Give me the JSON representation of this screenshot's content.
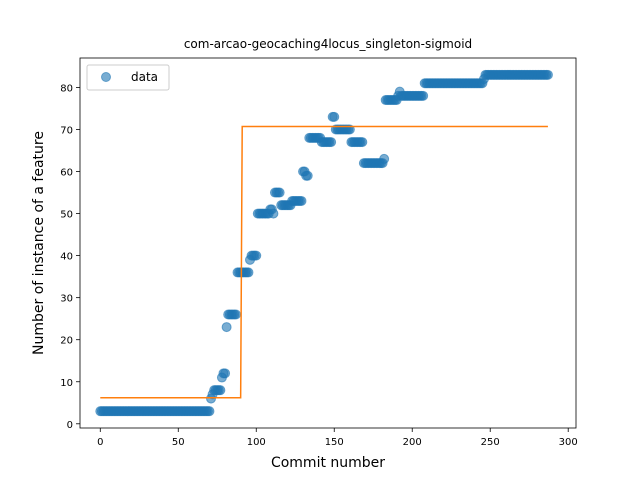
{
  "chart_data": {
    "type": "scatter",
    "title": "com-arcao-geocaching4locus_singleton-sigmoid",
    "xlabel": "Commit number",
    "ylabel": "Number of instance of a feature",
    "xlim": [
      -13,
      305
    ],
    "ylim": [
      -1,
      87
    ],
    "xticks": [
      0,
      50,
      100,
      150,
      200,
      250,
      300
    ],
    "yticks": [
      0,
      10,
      20,
      30,
      40,
      50,
      60,
      70,
      80
    ],
    "legend": {
      "position": "top-left",
      "entries": [
        "data"
      ]
    },
    "colors": {
      "data": "#1f77b4",
      "fit": "#ff7f0e"
    },
    "series": [
      {
        "name": "data",
        "kind": "scatter",
        "segments": [
          {
            "x_from": 0,
            "x_to": 70,
            "y": 3
          },
          {
            "x_from": 71,
            "x_to": 71,
            "y": 6
          },
          {
            "x_from": 72,
            "x_to": 72,
            "y": 7
          },
          {
            "x_from": 73,
            "x_to": 77,
            "y": 8
          },
          {
            "x_from": 78,
            "x_to": 78,
            "y": 11
          },
          {
            "x_from": 79,
            "x_to": 80,
            "y": 12
          },
          {
            "x_from": 81,
            "x_to": 81,
            "y": 23
          },
          {
            "x_from": 82,
            "x_to": 87,
            "y": 26
          },
          {
            "x_from": 88,
            "x_to": 95,
            "y": 36
          },
          {
            "x_from": 96,
            "x_to": 96,
            "y": 39
          },
          {
            "x_from": 97,
            "x_to": 100,
            "y": 40
          },
          {
            "x_from": 101,
            "x_to": 108,
            "y": 50
          },
          {
            "x_from": 109,
            "x_to": 110,
            "y": 51
          },
          {
            "x_from": 111,
            "x_to": 111,
            "y": 50
          },
          {
            "x_from": 112,
            "x_to": 115,
            "y": 55
          },
          {
            "x_from": 116,
            "x_to": 122,
            "y": 52
          },
          {
            "x_from": 123,
            "x_to": 129,
            "y": 53
          },
          {
            "x_from": 130,
            "x_to": 131,
            "y": 60
          },
          {
            "x_from": 132,
            "x_to": 133,
            "y": 59
          },
          {
            "x_from": 134,
            "x_to": 141,
            "y": 68
          },
          {
            "x_from": 142,
            "x_to": 148,
            "y": 67
          },
          {
            "x_from": 149,
            "x_to": 150,
            "y": 73
          },
          {
            "x_from": 151,
            "x_to": 160,
            "y": 70
          },
          {
            "x_from": 161,
            "x_to": 168,
            "y": 67
          },
          {
            "x_from": 169,
            "x_to": 181,
            "y": 62
          },
          {
            "x_from": 182,
            "x_to": 182,
            "y": 63
          },
          {
            "x_from": 183,
            "x_to": 190,
            "y": 77
          },
          {
            "x_from": 191,
            "x_to": 191,
            "y": 78
          },
          {
            "x_from": 192,
            "x_to": 192,
            "y": 79
          },
          {
            "x_from": 193,
            "x_to": 207,
            "y": 78
          },
          {
            "x_from": 208,
            "x_to": 245,
            "y": 81
          },
          {
            "x_from": 246,
            "x_to": 246,
            "y": 82
          },
          {
            "x_from": 247,
            "x_to": 287,
            "y": 83
          }
        ]
      },
      {
        "kind": "line",
        "points": [
          [
            0,
            6.2
          ],
          [
            90,
            6.2
          ],
          [
            91,
            70.7
          ],
          [
            287,
            70.7
          ]
        ]
      }
    ]
  }
}
